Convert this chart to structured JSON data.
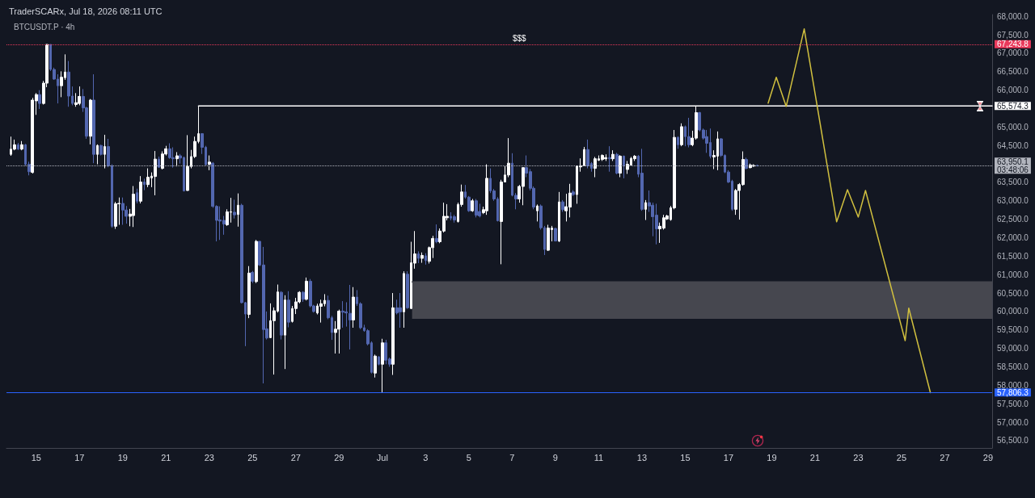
{
  "chart_data": {
    "type": "candlestick",
    "title": "TraderSCARx, Jul 18, 2026 08:11 UTC",
    "subtitle": "BTCUSDT.P · 4h",
    "marker": "none",
    "xlim": [
      "2026-06-13T15:00",
      "2026-07-29T04:30"
    ],
    "xticks": [
      {
        "value": "2026-06-15",
        "label": "15"
      },
      {
        "value": "2026-06-17",
        "label": "17"
      },
      {
        "value": "2026-06-19",
        "label": "19"
      },
      {
        "value": "2026-06-21",
        "label": "21"
      },
      {
        "value": "2026-06-23",
        "label": "23"
      },
      {
        "value": "2026-06-25",
        "label": "25"
      },
      {
        "value": "2026-06-27",
        "label": "27"
      },
      {
        "value": "2026-06-29",
        "label": "29"
      },
      {
        "value": "2026-07-01",
        "label": "Jul"
      },
      {
        "value": "2026-07-03",
        "label": "3"
      },
      {
        "value": "2026-07-05",
        "label": "5"
      },
      {
        "value": "2026-07-07",
        "label": "7"
      },
      {
        "value": "2026-07-09",
        "label": "9"
      },
      {
        "value": "2026-07-11",
        "label": "11"
      },
      {
        "value": "2026-07-13",
        "label": "13"
      },
      {
        "value": "2026-07-15",
        "label": "15"
      },
      {
        "value": "2026-07-17",
        "label": "17"
      },
      {
        "value": "2026-07-19",
        "label": "19"
      },
      {
        "value": "2026-07-21",
        "label": "21"
      },
      {
        "value": "2026-07-23",
        "label": "23"
      },
      {
        "value": "2026-07-25",
        "label": "25"
      },
      {
        "value": "2026-07-27",
        "label": "27"
      },
      {
        "value": "2026-07-29",
        "label": "29"
      }
    ],
    "ylim": [
      56300,
      68050
    ],
    "yticks": [
      {
        "value": 56500,
        "label": "56,500.0"
      },
      {
        "value": 57000,
        "label": "57,000.0"
      },
      {
        "value": 57500,
        "label": "57,500.0"
      },
      {
        "value": 58000,
        "label": "58,000.0"
      },
      {
        "value": 58500,
        "label": "58,500.0"
      },
      {
        "value": 59000,
        "label": "59,000.0"
      },
      {
        "value": 59500,
        "label": "59,500.0"
      },
      {
        "value": 60000,
        "label": "60,000.0"
      },
      {
        "value": 60500,
        "label": "60,500.0"
      },
      {
        "value": 61000,
        "label": "61,000.0"
      },
      {
        "value": 61500,
        "label": "61,500.0"
      },
      {
        "value": 62000,
        "label": "62,000.0"
      },
      {
        "value": 62500,
        "label": "62,500.0"
      },
      {
        "value": 63000,
        "label": "63,000.0"
      },
      {
        "value": 63500,
        "label": "63,500.0"
      },
      {
        "value": 64500,
        "label": "64,500.0"
      },
      {
        "value": 65000,
        "label": "65,000.0"
      },
      {
        "value": 66000,
        "label": "66,000.0"
      },
      {
        "value": 66500,
        "label": "66,500.0"
      },
      {
        "value": 67000,
        "label": "67,000.0"
      },
      {
        "value": 67500,
        "label": "67,500.0"
      },
      {
        "value": 68000,
        "label": "68,000.0"
      }
    ],
    "series": [
      {
        "x": [
          "2026-06-13T20:00",
          "2026-06-14T00:00",
          "2026-06-14T04:00",
          "2026-06-14T08:00",
          "2026-06-14T12:00",
          "2026-06-14T16:00",
          "2026-06-14T20:00",
          "2026-06-15T00:00",
          "2026-06-15T04:00",
          "2026-06-15T08:00",
          "2026-06-15T12:00",
          "2026-06-15T16:00",
          "2026-06-15T20:00",
          "2026-06-16T00:00",
          "2026-06-16T04:00",
          "2026-06-16T08:00",
          "2026-06-16T12:00",
          "2026-06-16T16:00",
          "2026-06-16T20:00",
          "2026-06-17T00:00",
          "2026-06-17T04:00",
          "2026-06-17T08:00",
          "2026-06-17T12:00",
          "2026-06-17T16:00",
          "2026-06-17T20:00",
          "2026-06-18T00:00",
          "2026-06-18T04:00",
          "2026-06-18T08:00",
          "2026-06-18T12:00",
          "2026-06-18T16:00",
          "2026-06-18T20:00",
          "2026-06-19T00:00",
          "2026-06-19T04:00",
          "2026-06-19T08:00",
          "2026-06-19T12:00",
          "2026-06-19T16:00",
          "2026-06-19T20:00",
          "2026-06-20T00:00",
          "2026-06-20T04:00",
          "2026-06-20T08:00",
          "2026-06-20T12:00",
          "2026-06-20T16:00",
          "2026-06-20T20:00",
          "2026-06-21T00:00",
          "2026-06-21T04:00",
          "2026-06-21T08:00",
          "2026-06-21T12:00",
          "2026-06-21T16:00",
          "2026-06-21T20:00",
          "2026-06-22T00:00",
          "2026-06-22T04:00",
          "2026-06-22T08:00",
          "2026-06-22T12:00",
          "2026-06-22T16:00",
          "2026-06-22T20:00",
          "2026-06-23T00:00",
          "2026-06-23T04:00",
          "2026-06-23T08:00",
          "2026-06-23T12:00",
          "2026-06-23T16:00",
          "2026-06-23T20:00",
          "2026-06-24T00:00",
          "2026-06-24T04:00",
          "2026-06-24T08:00",
          "2026-06-24T12:00",
          "2026-06-24T16:00",
          "2026-06-24T20:00",
          "2026-06-25T00:00",
          "2026-06-25T04:00",
          "2026-06-25T08:00",
          "2026-06-25T12:00",
          "2026-06-25T16:00",
          "2026-06-25T20:00",
          "2026-06-26T00:00",
          "2026-06-26T04:00",
          "2026-06-26T08:00",
          "2026-06-26T12:00",
          "2026-06-26T16:00",
          "2026-06-26T20:00",
          "2026-06-27T00:00",
          "2026-06-27T04:00",
          "2026-06-27T08:00",
          "2026-06-27T12:00",
          "2026-06-27T16:00",
          "2026-06-27T20:00",
          "2026-06-28T00:00",
          "2026-06-28T04:00",
          "2026-06-28T08:00",
          "2026-06-28T12:00",
          "2026-06-28T16:00",
          "2026-06-28T20:00",
          "2026-06-29T00:00",
          "2026-06-29T04:00",
          "2026-06-29T08:00",
          "2026-06-29T12:00",
          "2026-06-29T16:00",
          "2026-06-29T20:00",
          "2026-06-30T00:00",
          "2026-06-30T04:00",
          "2026-06-30T08:00",
          "2026-06-30T12:00",
          "2026-06-30T16:00",
          "2026-06-30T20:00",
          "2026-07-01T00:00",
          "2026-07-01T04:00",
          "2026-07-01T08:00",
          "2026-07-01T12:00",
          "2026-07-01T16:00",
          "2026-07-01T20:00",
          "2026-07-02T00:00",
          "2026-07-02T04:00",
          "2026-07-02T08:00",
          "2026-07-02T12:00",
          "2026-07-02T16:00",
          "2026-07-02T20:00",
          "2026-07-03T00:00",
          "2026-07-03T04:00",
          "2026-07-03T08:00",
          "2026-07-03T12:00",
          "2026-07-03T16:00",
          "2026-07-03T20:00",
          "2026-07-04T00:00",
          "2026-07-04T04:00",
          "2026-07-04T08:00",
          "2026-07-04T12:00",
          "2026-07-04T16:00",
          "2026-07-04T20:00",
          "2026-07-05T00:00",
          "2026-07-05T04:00",
          "2026-07-05T08:00",
          "2026-07-05T12:00",
          "2026-07-05T16:00",
          "2026-07-05T20:00",
          "2026-07-06T00:00",
          "2026-07-06T04:00",
          "2026-07-06T08:00",
          "2026-07-06T12:00",
          "2026-07-06T16:00",
          "2026-07-06T20:00",
          "2026-07-07T00:00",
          "2026-07-07T04:00",
          "2026-07-07T08:00",
          "2026-07-07T12:00",
          "2026-07-07T16:00",
          "2026-07-07T20:00",
          "2026-07-08T00:00",
          "2026-07-08T04:00",
          "2026-07-08T08:00",
          "2026-07-08T12:00",
          "2026-07-08T16:00",
          "2026-07-08T20:00",
          "2026-07-09T00:00",
          "2026-07-09T04:00",
          "2026-07-09T08:00",
          "2026-07-09T12:00",
          "2026-07-09T16:00",
          "2026-07-09T20:00",
          "2026-07-10T00:00",
          "2026-07-10T04:00",
          "2026-07-10T08:00",
          "2026-07-10T12:00",
          "2026-07-10T16:00",
          "2026-07-10T20:00",
          "2026-07-11T00:00",
          "2026-07-11T04:00",
          "2026-07-11T08:00",
          "2026-07-11T12:00",
          "2026-07-11T16:00",
          "2026-07-11T20:00",
          "2026-07-12T00:00",
          "2026-07-12T04:00",
          "2026-07-12T08:00",
          "2026-07-12T12:00",
          "2026-07-12T16:00",
          "2026-07-12T20:00",
          "2026-07-13T00:00",
          "2026-07-13T04:00",
          "2026-07-13T08:00",
          "2026-07-13T12:00",
          "2026-07-13T16:00",
          "2026-07-13T20:00",
          "2026-07-14T00:00",
          "2026-07-14T04:00",
          "2026-07-14T08:00",
          "2026-07-14T12:00",
          "2026-07-14T16:00",
          "2026-07-14T20:00",
          "2026-07-15T00:00",
          "2026-07-15T04:00",
          "2026-07-15T08:00",
          "2026-07-15T12:00",
          "2026-07-15T16:00",
          "2026-07-15T20:00",
          "2026-07-16T00:00",
          "2026-07-16T04:00",
          "2026-07-16T08:00",
          "2026-07-16T12:00",
          "2026-07-16T16:00",
          "2026-07-16T20:00",
          "2026-07-17T00:00",
          "2026-07-17T04:00",
          "2026-07-17T08:00",
          "2026-07-17T12:00",
          "2026-07-17T16:00",
          "2026-07-17T20:00",
          "2026-07-18T00:00",
          "2026-07-18T04:00",
          "2026-07-18T08:00"
        ],
        "ohlc": [
          [
            64260,
            64740,
            64220,
            64400
          ],
          [
            64400,
            64660,
            64370,
            64520
          ],
          [
            64520,
            64570,
            64380,
            64400
          ],
          [
            64400,
            64620,
            64370,
            64520
          ],
          [
            64520,
            64540,
            63950,
            63990
          ],
          [
            63990,
            64060,
            63690,
            63790
          ],
          [
            63770,
            65790,
            63740,
            65730
          ],
          [
            65710,
            65920,
            65330,
            65880
          ],
          [
            65880,
            66000,
            65490,
            65640
          ],
          [
            65640,
            66250,
            65610,
            66190
          ],
          [
            66190,
            67240,
            66080,
            67240
          ],
          [
            67240,
            67240,
            66520,
            66560
          ],
          [
            66560,
            66610,
            66280,
            66300
          ],
          [
            66300,
            66430,
            65640,
            66120
          ],
          [
            66120,
            66510,
            65810,
            66350
          ],
          [
            66340,
            66970,
            66280,
            66490
          ],
          [
            66490,
            66790,
            65550,
            65840
          ],
          [
            65840,
            66100,
            65590,
            65640
          ],
          [
            65610,
            65920,
            65550,
            65660
          ],
          [
            65640,
            66100,
            65590,
            65830
          ],
          [
            65830,
            66030,
            65410,
            65520
          ],
          [
            65520,
            65550,
            64680,
            64750
          ],
          [
            64750,
            65760,
            64530,
            65730
          ],
          [
            65730,
            66430,
            64020,
            64260
          ],
          [
            64260,
            64530,
            63990,
            64500
          ],
          [
            64500,
            64520,
            64230,
            64260
          ],
          [
            64260,
            64790,
            63880,
            64470
          ],
          [
            64470,
            64680,
            63910,
            63950
          ],
          [
            63950,
            63990,
            62270,
            62310
          ],
          [
            62310,
            62970,
            62240,
            62920
          ],
          [
            62920,
            63090,
            62350,
            62930
          ],
          [
            62930,
            63090,
            62350,
            62750
          ],
          [
            62750,
            62860,
            62380,
            62580
          ],
          [
            62580,
            62780,
            62310,
            62640
          ],
          [
            62600,
            63400,
            62290,
            63180
          ],
          [
            63220,
            63330,
            62930,
            62990
          ],
          [
            62990,
            63670,
            62930,
            63510
          ],
          [
            63510,
            63600,
            63290,
            63440
          ],
          [
            63440,
            63880,
            63370,
            63640
          ],
          [
            63620,
            63770,
            63370,
            63670
          ],
          [
            63660,
            64350,
            63150,
            64130
          ],
          [
            64130,
            64200,
            63900,
            63910
          ],
          [
            63880,
            64340,
            63850,
            64270
          ],
          [
            64270,
            64490,
            64230,
            64410
          ],
          [
            64410,
            64560,
            64140,
            64170
          ],
          [
            64170,
            64450,
            63900,
            64140
          ],
          [
            64140,
            64320,
            63930,
            64220
          ],
          [
            64220,
            64270,
            64010,
            64160
          ],
          [
            64170,
            64200,
            63250,
            63270
          ],
          [
            63280,
            64780,
            63270,
            63930
          ],
          [
            63930,
            64380,
            63880,
            64200
          ],
          [
            64200,
            64740,
            64160,
            64610
          ],
          [
            64610,
            65570,
            64560,
            64820
          ],
          [
            64820,
            64830,
            64270,
            64450
          ],
          [
            64450,
            64490,
            63940,
            63980
          ],
          [
            63990,
            64230,
            63830,
            64050
          ],
          [
            64020,
            64050,
            62810,
            62850
          ],
          [
            62850,
            62880,
            61900,
            62470
          ],
          [
            62480,
            62850,
            61940,
            62450
          ],
          [
            62470,
            62590,
            62080,
            62370
          ],
          [
            62350,
            62770,
            62320,
            62700
          ],
          [
            62690,
            63080,
            62410,
            62700
          ],
          [
            62690,
            63030,
            62520,
            62620
          ],
          [
            62630,
            63200,
            62300,
            62880
          ],
          [
            62880,
            62920,
            60220,
            60240
          ],
          [
            60240,
            60260,
            59060,
            59930
          ],
          [
            59920,
            61230,
            59820,
            61040
          ],
          [
            61060,
            61100,
            60770,
            60820
          ],
          [
            60810,
            61940,
            60770,
            61900
          ],
          [
            61900,
            61910,
            61230,
            61260
          ],
          [
            61260,
            61750,
            58050,
            59510
          ],
          [
            59530,
            60000,
            59240,
            59280
          ],
          [
            59290,
            60220,
            59280,
            59750
          ],
          [
            59750,
            60110,
            58290,
            60020
          ],
          [
            60010,
            60730,
            59970,
            60530
          ],
          [
            60520,
            60550,
            59240,
            59360
          ],
          [
            59360,
            60440,
            58440,
            60310
          ],
          [
            60310,
            60550,
            59570,
            59710
          ],
          [
            59730,
            60150,
            59700,
            60080
          ],
          [
            60080,
            60370,
            59930,
            60260
          ],
          [
            60260,
            60550,
            60220,
            60520
          ],
          [
            60520,
            60550,
            60260,
            60330
          ],
          [
            60330,
            60920,
            60300,
            60820
          ],
          [
            60820,
            60880,
            60110,
            60150
          ],
          [
            60150,
            60180,
            59970,
            60000
          ],
          [
            59960,
            60210,
            59920,
            60150
          ],
          [
            60140,
            60320,
            59700,
            60210
          ],
          [
            60210,
            60470,
            60140,
            60300
          ],
          [
            60300,
            60430,
            59790,
            59830
          ],
          [
            59830,
            59880,
            59230,
            59430
          ],
          [
            59430,
            59740,
            58860,
            59520
          ],
          [
            59520,
            60050,
            58860,
            60010
          ],
          [
            60010,
            60280,
            59560,
            59980
          ],
          [
            59990,
            60250,
            59590,
            59960
          ],
          [
            59950,
            60720,
            58970,
            59770
          ],
          [
            59770,
            60660,
            59560,
            60390
          ],
          [
            60390,
            60580,
            60150,
            60210
          ],
          [
            60210,
            60250,
            59520,
            59560
          ],
          [
            59560,
            59640,
            59450,
            59480
          ],
          [
            59480,
            59520,
            59080,
            59120
          ],
          [
            59150,
            59190,
            58320,
            58350
          ],
          [
            58330,
            58830,
            58210,
            58790
          ],
          [
            58770,
            58790,
            58540,
            58570
          ],
          [
            58570,
            59260,
            57810,
            59150
          ],
          [
            59150,
            59230,
            58570,
            58680
          ],
          [
            58710,
            58750,
            58500,
            58570
          ],
          [
            58570,
            60500,
            58280,
            60100
          ],
          [
            60100,
            60320,
            59920,
            59960
          ],
          [
            60100,
            60500,
            59560,
            59990
          ],
          [
            59990,
            61090,
            59560,
            61030
          ],
          [
            61010,
            61090,
            60070,
            60100
          ],
          [
            60080,
            61890,
            60070,
            61320
          ],
          [
            61310,
            62180,
            61160,
            61560
          ],
          [
            61560,
            61630,
            61310,
            61440
          ],
          [
            61440,
            61600,
            61320,
            61520
          ],
          [
            61510,
            61580,
            61270,
            61380
          ],
          [
            61360,
            61760,
            61300,
            61730
          ],
          [
            61730,
            62050,
            61450,
            61980
          ],
          [
            61980,
            62360,
            61850,
            61890
          ],
          [
            61890,
            62250,
            61850,
            62180
          ],
          [
            62180,
            62950,
            62140,
            62580
          ],
          [
            62540,
            62910,
            62470,
            62580
          ],
          [
            62580,
            62690,
            62470,
            62530
          ],
          [
            62570,
            62620,
            62410,
            62480
          ],
          [
            62440,
            62950,
            62410,
            62900
          ],
          [
            62900,
            63440,
            62840,
            63240
          ],
          [
            63240,
            63430,
            63060,
            63100
          ],
          [
            63100,
            63130,
            62700,
            62730
          ],
          [
            62730,
            63050,
            62700,
            63000
          ],
          [
            63000,
            63050,
            62550,
            62610
          ],
          [
            62710,
            62920,
            62550,
            62590
          ],
          [
            62680,
            62840,
            62640,
            62760
          ],
          [
            62730,
            63990,
            62620,
            63610
          ],
          [
            63610,
            63880,
            63210,
            63270
          ],
          [
            63270,
            63320,
            63000,
            63050
          ],
          [
            63050,
            63100,
            62440,
            62460
          ],
          [
            62440,
            63570,
            61280,
            63510
          ],
          [
            63510,
            63940,
            63500,
            63700
          ],
          [
            63700,
            64700,
            63640,
            64020
          ],
          [
            64020,
            64290,
            63120,
            63150
          ],
          [
            63150,
            63210,
            62770,
            63050
          ],
          [
            63050,
            63430,
            62950,
            63390
          ],
          [
            63390,
            63900,
            62880,
            63900
          ],
          [
            63900,
            64230,
            63640,
            63750
          ],
          [
            63790,
            63860,
            63280,
            63340
          ],
          [
            63340,
            63390,
            62770,
            62830
          ],
          [
            62730,
            62900,
            62440,
            62860
          ],
          [
            62860,
            62900,
            62220,
            62270
          ],
          [
            62270,
            62320,
            61530,
            61680
          ],
          [
            61660,
            62350,
            61640,
            62260
          ],
          [
            62220,
            62320,
            61900,
            62260
          ],
          [
            62250,
            62270,
            61900,
            61910
          ],
          [
            61910,
            63240,
            61880,
            62970
          ],
          [
            62970,
            63020,
            62700,
            62760
          ],
          [
            62730,
            63190,
            62440,
            62840
          ],
          [
            62830,
            63460,
            62550,
            63210
          ],
          [
            63240,
            63290,
            63130,
            63170
          ],
          [
            63170,
            63950,
            62920,
            63940
          ],
          [
            63920,
            64150,
            63790,
            63950
          ],
          [
            63950,
            64460,
            63940,
            64390
          ],
          [
            64390,
            64660,
            63880,
            63950
          ],
          [
            64010,
            64050,
            63790,
            63880
          ],
          [
            63880,
            64190,
            63640,
            64140
          ],
          [
            64100,
            64230,
            64080,
            64140
          ],
          [
            64120,
            64260,
            64080,
            64230
          ],
          [
            64140,
            64260,
            64080,
            64170
          ],
          [
            64170,
            64480,
            63790,
            64140
          ],
          [
            64140,
            64370,
            64080,
            64260
          ],
          [
            64260,
            64300,
            63720,
            63750
          ],
          [
            63750,
            64240,
            63640,
            64210
          ],
          [
            64210,
            64230,
            63610,
            63970
          ],
          [
            63850,
            64080,
            63730,
            63990
          ],
          [
            63970,
            64190,
            63940,
            64150
          ],
          [
            64140,
            64240,
            64080,
            64210
          ],
          [
            64210,
            64240,
            63640,
            63720
          ],
          [
            63750,
            64410,
            62730,
            62770
          ],
          [
            62770,
            63020,
            62480,
            62950
          ],
          [
            62950,
            63280,
            62700,
            62860
          ],
          [
            62880,
            62950,
            62040,
            62570
          ],
          [
            62610,
            62920,
            61820,
            62240
          ],
          [
            62240,
            62410,
            61860,
            62310
          ],
          [
            62260,
            62620,
            62220,
            62540
          ],
          [
            62510,
            62620,
            62480,
            62590
          ],
          [
            62490,
            62860,
            62460,
            62810
          ],
          [
            62810,
            64920,
            62770,
            64720
          ],
          [
            64720,
            64750,
            64410,
            64520
          ],
          [
            64520,
            65100,
            64480,
            65010
          ],
          [
            65010,
            65040,
            64480,
            64740
          ],
          [
            64740,
            65250,
            64450,
            64520
          ],
          [
            64520,
            64900,
            64480,
            64700
          ],
          [
            64700,
            65570,
            64660,
            65390
          ],
          [
            65390,
            65410,
            64880,
            64920
          ],
          [
            64920,
            64960,
            64660,
            64700
          ],
          [
            64740,
            64920,
            64300,
            64560
          ],
          [
            64580,
            64960,
            64150,
            64210
          ],
          [
            64190,
            64370,
            63860,
            64230
          ],
          [
            64210,
            64880,
            63830,
            64680
          ],
          [
            64680,
            64700,
            64190,
            64230
          ],
          [
            64230,
            64260,
            63750,
            63780
          ],
          [
            63780,
            63830,
            63480,
            63510
          ],
          [
            63530,
            63570,
            62730,
            62770
          ],
          [
            62770,
            63320,
            62620,
            63280
          ],
          [
            63280,
            63480,
            62490,
            63440
          ],
          [
            63440,
            64340,
            63410,
            64120
          ],
          [
            64120,
            64170,
            63850,
            63880
          ],
          [
            63900,
            64010,
            63880,
            63970
          ],
          [
            63940,
            63990,
            63920,
            63960
          ],
          [
            63960,
            63980,
            63930,
            63950.1
          ]
        ],
        "colors": [
          "#ffffff",
          "#ffffff",
          "#5367b0",
          "#ffffff",
          "#5367b0",
          "#5367b0",
          "#ffffff",
          "#ffffff",
          "#5367b0",
          "#ffffff",
          "#ffffff",
          "#5367b0",
          "#5367b0",
          "#5367b0",
          "#ffffff",
          "#ffffff",
          "#5367b0",
          "#5367b0",
          "#ffffff",
          "#ffffff",
          "#5367b0",
          "#5367b0",
          "#ffffff",
          "#5367b0",
          "#ffffff",
          "#5367b0",
          "#ffffff",
          "#5367b0",
          "#5367b0",
          "#ffffff",
          "#ffffff",
          "#5367b0",
          "#5367b0",
          "#ffffff",
          "#ffffff",
          "#5367b0",
          "#ffffff",
          "#5367b0",
          "#ffffff",
          "#ffffff",
          "#ffffff",
          "#5367b0",
          "#ffffff",
          "#ffffff",
          "#5367b0",
          "#5367b0",
          "#ffffff",
          "#5367b0",
          "#5367b0",
          "#ffffff",
          "#ffffff",
          "#ffffff",
          "#ffffff",
          "#5367b0",
          "#5367b0",
          "#ffffff",
          "#5367b0",
          "#5367b0",
          "#5367b0",
          "#5367b0",
          "#ffffff",
          "#ffffff",
          "#5367b0",
          "#ffffff",
          "#5367b0",
          "#5367b0",
          "#ffffff",
          "#5367b0",
          "#ffffff",
          "#5367b0",
          "#5367b0",
          "#5367b0",
          "#ffffff",
          "#ffffff",
          "#ffffff",
          "#5367b0",
          "#ffffff",
          "#5367b0",
          "#ffffff",
          "#ffffff",
          "#ffffff",
          "#5367b0",
          "#ffffff",
          "#5367b0",
          "#5367b0",
          "#ffffff",
          "#ffffff",
          "#ffffff",
          "#5367b0",
          "#5367b0",
          "#ffffff",
          "#ffffff",
          "#5367b0",
          "#5367b0",
          "#5367b0",
          "#ffffff",
          "#5367b0",
          "#5367b0",
          "#5367b0",
          "#5367b0",
          "#5367b0",
          "#ffffff",
          "#5367b0",
          "#ffffff",
          "#5367b0",
          "#5367b0",
          "#ffffff",
          "#5367b0",
          "#5367b0",
          "#ffffff",
          "#5367b0",
          "#ffffff",
          "#ffffff",
          "#5367b0",
          "#ffffff",
          "#5367b0",
          "#ffffff",
          "#ffffff",
          "#5367b0",
          "#ffffff",
          "#ffffff",
          "#ffffff",
          "#5367b0",
          "#5367b0",
          "#ffffff",
          "#ffffff",
          "#5367b0",
          "#5367b0",
          "#ffffff",
          "#5367b0",
          "#5367b0",
          "#ffffff",
          "#ffffff",
          "#5367b0",
          "#5367b0",
          "#5367b0",
          "#ffffff",
          "#ffffff",
          "#ffffff",
          "#5367b0",
          "#5367b0",
          "#ffffff",
          "#ffffff",
          "#5367b0",
          "#5367b0",
          "#5367b0",
          "#ffffff",
          "#5367b0",
          "#5367b0",
          "#ffffff",
          "#ffffff",
          "#5367b0",
          "#ffffff",
          "#5367b0",
          "#ffffff",
          "#ffffff",
          "#5367b0",
          "#ffffff",
          "#ffffff",
          "#ffffff",
          "#5367b0",
          "#5367b0",
          "#ffffff",
          "#ffffff",
          "#ffffff",
          "#ffffff",
          "#5367b0",
          "#ffffff",
          "#5367b0",
          "#ffffff",
          "#5367b0",
          "#ffffff",
          "#ffffff",
          "#ffffff",
          "#5367b0",
          "#5367b0",
          "#ffffff",
          "#5367b0",
          "#5367b0",
          "#5367b0",
          "#ffffff",
          "#ffffff",
          "#ffffff",
          "#ffffff",
          "#ffffff",
          "#5367b0",
          "#ffffff",
          "#5367b0",
          "#5367b0",
          "#ffffff",
          "#ffffff",
          "#5367b0",
          "#5367b0",
          "#5367b0",
          "#5367b0",
          "#ffffff",
          "#ffffff",
          "#5367b0",
          "#5367b0",
          "#5367b0",
          "#5367b0",
          "#ffffff",
          "#ffffff",
          "#ffffff",
          "#5367b0",
          "#ffffff",
          "#ffffff",
          "#5367b0"
        ]
      },
      {
        "type": "line",
        "color": "#46474f",
        "x": [
          "2026-07-02T09:00",
          "2026-07-29T04:30"
        ],
        "values": [
          60800,
          60800
        ],
        "upper": [
          60800,
          60800
        ],
        "lower": [
          59800,
          59800
        ]
      },
      {
        "type": "line",
        "color": "#ffffff",
        "x": [
          "2026-06-22T12:00",
          "2026-07-29T04:30"
        ],
        "values": [
          65574.3,
          65574.3
        ],
        "value_labels": [
          null,
          "65,574.3"
        ]
      },
      {
        "type": "line",
        "color": "#d1c03f",
        "x": [
          "2026-07-18T20:00",
          "2026-07-19T05:00",
          "2026-07-19T16:00",
          "2026-07-20T12:00",
          "2026-07-22T00:00",
          "2026-07-22T12:00",
          "2026-07-23T00:00",
          "2026-07-23T08:00",
          "2026-07-25T04:00",
          "2026-07-25T08:00",
          "2026-07-26T08:00"
        ],
        "values": [
          65650,
          66350,
          65560,
          67660,
          62430,
          63300,
          62560,
          63280,
          59210,
          60090,
          57800
        ]
      }
    ],
    "ref_lines": [
      {
        "axis": "y",
        "value": 67243.8,
        "label": "67,243.8",
        "color": "#e8395b",
        "line_style": "dotted"
      },
      {
        "axis": "y",
        "value": 63950.1,
        "label": "63,950.1\n03:48:06",
        "color": "#b2b5be",
        "line_style": "dotted"
      },
      {
        "axis": "y",
        "value": 57806.3,
        "label": "57,806.3",
        "color": "#2962ff",
        "line_style": "solid"
      }
    ],
    "annotations": [
      {
        "text": "$$$",
        "x": "2026-07-07T08:00",
        "y": 67243.8
      }
    ]
  }
}
